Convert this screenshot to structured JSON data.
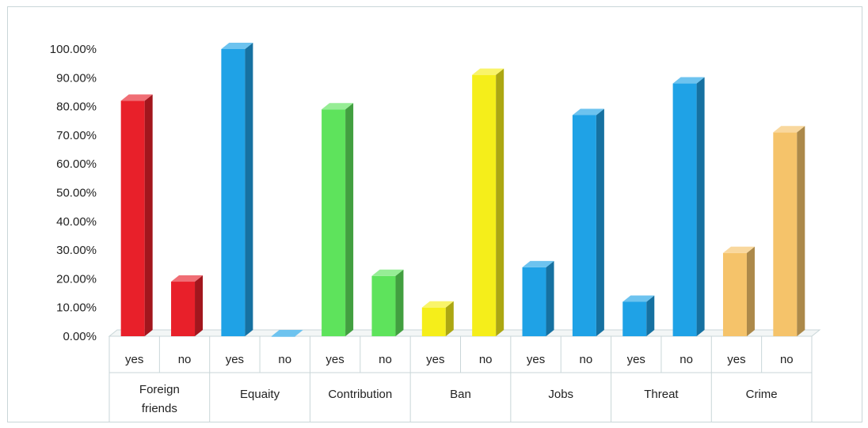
{
  "chart_data": {
    "type": "bar",
    "style": "3d-column",
    "title": "",
    "xlabel": "",
    "ylabel": "",
    "ylim": [
      0,
      100
    ],
    "y_ticks": [
      "0.00%",
      "10.00%",
      "20.00%",
      "30.00%",
      "40.00%",
      "50.00%",
      "60.00%",
      "70.00%",
      "80.00%",
      "90.00%",
      "100.00%"
    ],
    "grid": false,
    "legend": "none",
    "groups": [
      {
        "label": "Foreign friends",
        "label_lines": [
          "Foreign",
          "friends"
        ],
        "color": "#e8202a",
        "bars": [
          {
            "category": "yes",
            "value": 82
          },
          {
            "category": "no",
            "value": 19
          }
        ]
      },
      {
        "label": "Equaity",
        "label_lines": [
          "Equaity"
        ],
        "color": "#1fa2e6",
        "bars": [
          {
            "category": "yes",
            "value": 100
          },
          {
            "category": "no",
            "value": 0
          }
        ]
      },
      {
        "label": "Contribution",
        "label_lines": [
          "Contribution"
        ],
        "color": "#5ee35c",
        "bars": [
          {
            "category": "yes",
            "value": 79
          },
          {
            "category": "no",
            "value": 21
          }
        ]
      },
      {
        "label": "Ban",
        "label_lines": [
          "Ban"
        ],
        "color": "#f5ee1a",
        "bars": [
          {
            "category": "yes",
            "value": 10
          },
          {
            "category": "no",
            "value": 91
          }
        ]
      },
      {
        "label": "Jobs",
        "label_lines": [
          "Jobs"
        ],
        "color": "#1fa2e6",
        "bars": [
          {
            "category": "yes",
            "value": 24
          },
          {
            "category": "no",
            "value": 77
          }
        ]
      },
      {
        "label": "Threat",
        "label_lines": [
          "Threat"
        ],
        "color": "#1fa2e6",
        "bars": [
          {
            "category": "yes",
            "value": 12
          },
          {
            "category": "no",
            "value": 88
          }
        ]
      },
      {
        "label": "Crime",
        "label_lines": [
          "Crime"
        ],
        "color": "#f5c36a",
        "bars": [
          {
            "category": "yes",
            "value": 29
          },
          {
            "category": "no",
            "value": 71
          }
        ]
      }
    ]
  }
}
